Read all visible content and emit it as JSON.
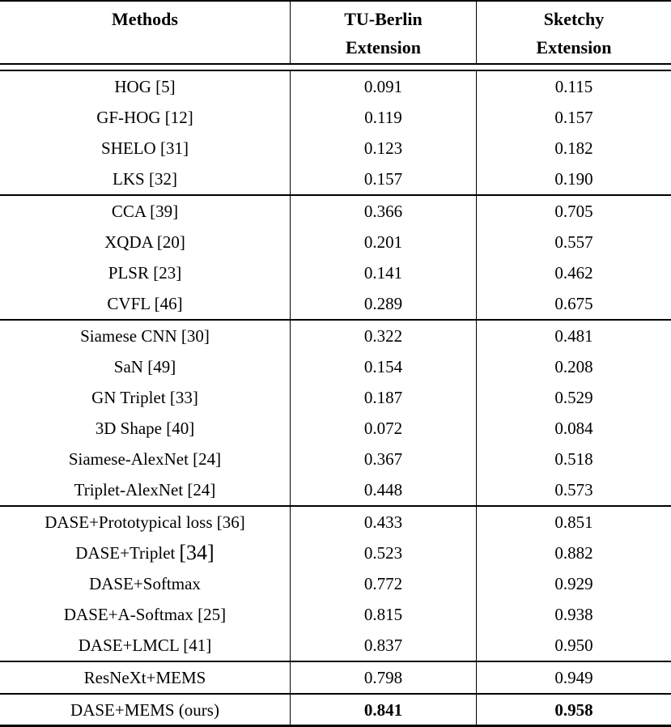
{
  "colors": {
    "text": "#000000",
    "rule": "#000000",
    "background": "#ffffff"
  },
  "table": {
    "header": {
      "col1": "Methods",
      "col2_line1": "TU-Berlin",
      "col2_line2": "Extension",
      "col3_line1": "Sketchy",
      "col3_line2": "Extension"
    },
    "groups": [
      {
        "rows": [
          {
            "label": "HOG [5]",
            "values": [
              "0.091",
              "0.115"
            ]
          },
          {
            "label": "GF-HOG [12]",
            "values": [
              "0.119",
              "0.157"
            ]
          },
          {
            "label": "SHELO [31]",
            "values": [
              "0.123",
              "0.182"
            ]
          },
          {
            "label": "LKS [32]",
            "values": [
              "0.157",
              "0.190"
            ]
          }
        ]
      },
      {
        "rows": [
          {
            "label": "CCA [39]",
            "values": [
              "0.366",
              "0.705"
            ]
          },
          {
            "label": "XQDA [20]",
            "values": [
              "0.201",
              "0.557"
            ]
          },
          {
            "label": "PLSR [23]",
            "values": [
              "0.141",
              "0.462"
            ]
          },
          {
            "label": "CVFL [46]",
            "values": [
              "0.289",
              "0.675"
            ]
          }
        ]
      },
      {
        "rows": [
          {
            "label": "Siamese CNN [30]",
            "values": [
              "0.322",
              "0.481"
            ]
          },
          {
            "label": "SaN [49]",
            "values": [
              "0.154",
              "0.208"
            ]
          },
          {
            "label": "GN Triplet [33]",
            "values": [
              "0.187",
              "0.529"
            ]
          },
          {
            "label": "3D Shape [40]",
            "values": [
              "0.072",
              "0.084"
            ]
          },
          {
            "label": "Siamese-AlexNet [24]",
            "values": [
              "0.367",
              "0.518"
            ]
          },
          {
            "label": "Triplet-AlexNet [24]",
            "values": [
              "0.448",
              "0.573"
            ]
          }
        ]
      },
      {
        "rows": [
          {
            "label": "DASE+Prototypical loss [36]",
            "values": [
              "0.433",
              "0.851"
            ]
          },
          {
            "label": "DASE+Triplet",
            "label_suffix": "[34]",
            "values": [
              "0.523",
              "0.882"
            ]
          },
          {
            "label": "DASE+Softmax",
            "values": [
              "0.772",
              "0.929"
            ]
          },
          {
            "label": "DASE+A-Softmax [25]",
            "values": [
              "0.815",
              "0.938"
            ]
          },
          {
            "label": "DASE+LMCL [41]",
            "values": [
              "0.837",
              "0.950"
            ]
          }
        ]
      },
      {
        "rows": [
          {
            "label": "ResNeXt+MEMS",
            "values": [
              "0.798",
              "0.949"
            ]
          }
        ]
      },
      {
        "rows": [
          {
            "label": "DASE+MEMS (ours)",
            "values": [
              "0.841",
              "0.958"
            ],
            "bold_values": true
          }
        ]
      }
    ]
  }
}
